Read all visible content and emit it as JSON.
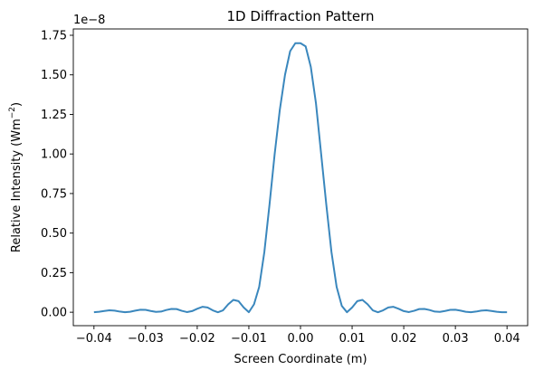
{
  "chart_data": {
    "type": "line",
    "title": "1D Diffraction Pattern",
    "xlabel": "Screen Coordinate (m)",
    "ylabel": "Relative Intensity (Wm",
    "ylabel_sup": "−2",
    "ylabel_close": ")",
    "y_offset_text": "1e−8",
    "xlim": [
      -0.044,
      0.044
    ],
    "ylim": [
      -0.085,
      1.79
    ],
    "x_ticks": [
      -0.04,
      -0.03,
      -0.02,
      -0.01,
      0.0,
      0.01,
      0.02,
      0.03,
      0.04
    ],
    "x_tick_labels": [
      "−0.04",
      "−0.03",
      "−0.02",
      "−0.01",
      "0.00",
      "0.01",
      "0.02",
      "0.03",
      "0.04"
    ],
    "y_ticks": [
      0.0,
      0.25,
      0.5,
      0.75,
      1.0,
      1.25,
      1.5,
      1.75
    ],
    "y_tick_labels": [
      "0.00",
      "0.25",
      "0.50",
      "0.75",
      "1.00",
      "1.25",
      "1.50",
      "1.75"
    ],
    "grid": false,
    "line_color": "#3a87bd",
    "series": [
      {
        "x": [
          -0.04,
          -0.039,
          -0.038,
          -0.037,
          -0.036,
          -0.035,
          -0.034,
          -0.033,
          -0.032,
          -0.031,
          -0.03,
          -0.029,
          -0.028,
          -0.027,
          -0.026,
          -0.025,
          -0.024,
          -0.023,
          -0.022,
          -0.021,
          -0.02,
          -0.019,
          -0.018,
          -0.017,
          -0.016,
          -0.015,
          -0.014,
          -0.013,
          -0.012,
          -0.011,
          -0.01,
          -0.009,
          -0.008,
          -0.007,
          -0.006,
          -0.005,
          -0.004,
          -0.003,
          -0.002,
          -0.001,
          0.0,
          0.001,
          0.002,
          0.003,
          0.004,
          0.005,
          0.006,
          0.007,
          0.008,
          0.009,
          0.01,
          0.011,
          0.012,
          0.013,
          0.014,
          0.015,
          0.016,
          0.017,
          0.018,
          0.019,
          0.02,
          0.021,
          0.022,
          0.023,
          0.024,
          0.025,
          0.026,
          0.027,
          0.028,
          0.029,
          0.03,
          0.031,
          0.032,
          0.033,
          0.034,
          0.035,
          0.036,
          0.037,
          0.038,
          0.039,
          0.04
        ],
        "y": [
          0.0,
          0.003,
          0.008,
          0.012,
          0.01,
          0.004,
          0.0,
          0.003,
          0.01,
          0.016,
          0.015,
          0.008,
          0.002,
          0.004,
          0.014,
          0.021,
          0.02,
          0.009,
          0.001,
          0.007,
          0.022,
          0.034,
          0.03,
          0.012,
          0.0,
          0.012,
          0.05,
          0.078,
          0.07,
          0.03,
          0.0,
          0.05,
          0.16,
          0.38,
          0.68,
          1.0,
          1.28,
          1.5,
          1.65,
          1.7,
          1.7,
          1.68,
          1.55,
          1.32,
          1.0,
          0.68,
          0.38,
          0.16,
          0.04,
          0.0,
          0.03,
          0.07,
          0.078,
          0.05,
          0.012,
          0.0,
          0.012,
          0.03,
          0.034,
          0.022,
          0.007,
          0.001,
          0.009,
          0.02,
          0.021,
          0.014,
          0.004,
          0.002,
          0.008,
          0.015,
          0.016,
          0.01,
          0.003,
          0.0,
          0.004,
          0.01,
          0.012,
          0.008,
          0.003,
          0.0,
          0.0
        ]
      }
    ]
  }
}
